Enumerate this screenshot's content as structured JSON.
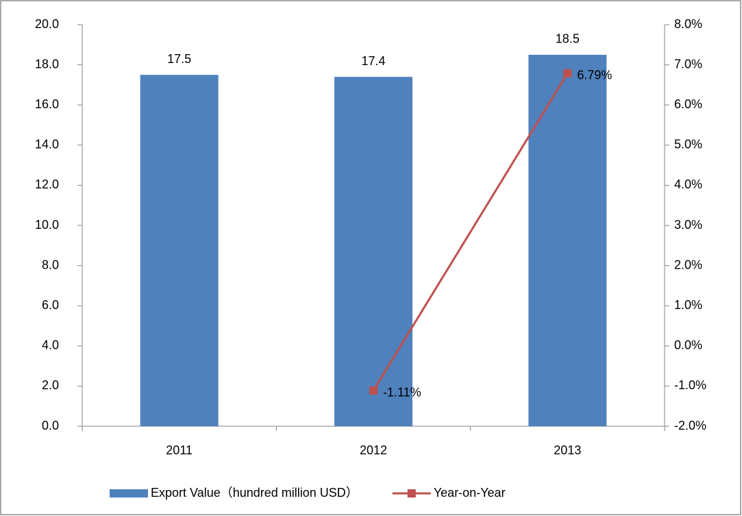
{
  "chart_data": {
    "type": "bar",
    "categories": [
      "2011",
      "2012",
      "2013"
    ],
    "series": [
      {
        "name": "Export Value（hundred million USD）",
        "type": "bar",
        "color": "#4f81bd",
        "values": [
          17.5,
          17.4,
          18.5
        ]
      },
      {
        "name": "Year-on-Year",
        "type": "line",
        "axis": "y2",
        "color": "#c0504d",
        "values": [
          null,
          -1.11,
          6.79
        ],
        "value_labels": [
          null,
          "-1.11%",
          "6.79%"
        ]
      }
    ],
    "ylim": [
      0,
      20
    ],
    "yticks": [
      {
        "value": 0,
        "label": "0.0"
      },
      {
        "value": 2,
        "label": "2.0"
      },
      {
        "value": 4,
        "label": "4.0"
      },
      {
        "value": 6,
        "label": "6.0"
      },
      {
        "value": 8,
        "label": "8.0"
      },
      {
        "value": 10,
        "label": "10.0"
      },
      {
        "value": 12,
        "label": "12.0"
      },
      {
        "value": 14,
        "label": "14.0"
      },
      {
        "value": 16,
        "label": "16.0"
      },
      {
        "value": 18,
        "label": "18.0"
      },
      {
        "value": 20,
        "label": "20.0"
      }
    ],
    "y2lim": [
      -2,
      8
    ],
    "y2ticks": [
      {
        "value": -2,
        "label": "-2.0%"
      },
      {
        "value": -1,
        "label": "-1.0%"
      },
      {
        "value": 0,
        "label": "0.0%"
      },
      {
        "value": 1,
        "label": "1.0%"
      },
      {
        "value": 2,
        "label": "2.0%"
      },
      {
        "value": 3,
        "label": "3.0%"
      },
      {
        "value": 4,
        "label": "4.0%"
      },
      {
        "value": 5,
        "label": "5.0%"
      },
      {
        "value": 6,
        "label": "6.0%"
      },
      {
        "value": 7,
        "label": "7.0%"
      },
      {
        "value": 8,
        "label": "8.0%"
      }
    ],
    "legend": "bottom"
  }
}
